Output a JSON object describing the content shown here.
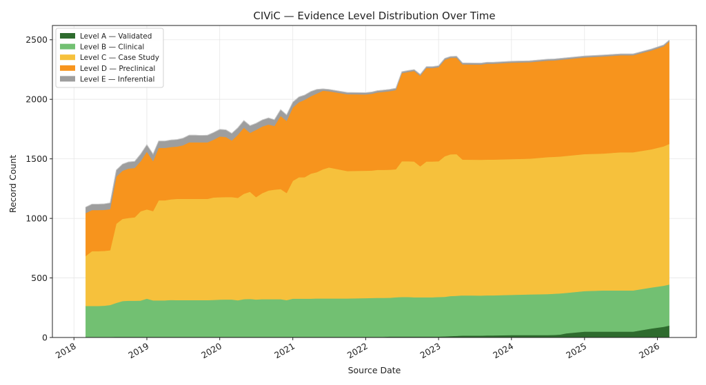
{
  "chart_data": {
    "type": "area",
    "stacked": true,
    "title": "CIViC — Evidence Level Distribution Over Time",
    "xlabel": "Source Date",
    "ylabel": "Record Count",
    "xlim": [
      "2017-09-15",
      "2026-07-15"
    ],
    "ylim": [
      0,
      2620
    ],
    "grid": true,
    "legend_position": "top-left",
    "x_ticks": [
      "2018",
      "2019",
      "2020",
      "2021",
      "2022",
      "2023",
      "2024",
      "2025",
      "2026"
    ],
    "y_ticks": [
      0,
      500,
      1000,
      1500,
      2000,
      2500
    ],
    "x": [
      "2018-03-01",
      "2018-04-01",
      "2018-05-01",
      "2018-06-01",
      "2018-07-01",
      "2018-08-01",
      "2018-09-01",
      "2018-10-01",
      "2018-11-01",
      "2018-12-01",
      "2019-01-01",
      "2019-02-01",
      "2019-03-01",
      "2019-04-01",
      "2019-05-01",
      "2019-06-01",
      "2019-07-01",
      "2019-08-01",
      "2019-09-01",
      "2019-10-01",
      "2019-11-01",
      "2019-12-01",
      "2020-01-01",
      "2020-02-01",
      "2020-03-01",
      "2020-04-01",
      "2020-05-01",
      "2020-06-01",
      "2020-07-01",
      "2020-08-01",
      "2020-09-01",
      "2020-10-01",
      "2020-11-01",
      "2020-12-01",
      "2021-01-01",
      "2021-02-01",
      "2021-03-01",
      "2021-04-01",
      "2021-05-01",
      "2021-06-01",
      "2021-07-01",
      "2021-10-01",
      "2022-01-01",
      "2022-02-01",
      "2022-03-01",
      "2022-04-01",
      "2022-05-01",
      "2022-06-01",
      "2022-07-01",
      "2022-08-01",
      "2022-09-01",
      "2022-10-01",
      "2022-11-01",
      "2022-12-01",
      "2023-01-01",
      "2023-02-01",
      "2023-03-01",
      "2023-04-01",
      "2023-05-01",
      "2023-08-01",
      "2023-09-01",
      "2023-10-01",
      "2024-01-01",
      "2024-04-01",
      "2024-07-01",
      "2024-08-01",
      "2024-09-01",
      "2024-10-01",
      "2025-01-01",
      "2025-04-01",
      "2025-07-01",
      "2025-08-01",
      "2025-09-01",
      "2025-12-01",
      "2026-02-01",
      "2026-03-01"
    ],
    "series": [
      {
        "name": "Level A — Validated",
        "color": "#2e6b2e",
        "values": [
          5,
          5,
          5,
          5,
          5,
          6,
          6,
          6,
          6,
          6,
          6,
          6,
          6,
          6,
          6,
          6,
          6,
          6,
          6,
          6,
          6,
          6,
          6,
          6,
          6,
          6,
          6,
          6,
          6,
          6,
          6,
          6,
          6,
          6,
          6,
          6,
          6,
          6,
          6,
          6,
          6,
          6,
          6,
          6,
          6,
          6,
          8,
          8,
          8,
          8,
          8,
          8,
          8,
          8,
          8,
          10,
          12,
          14,
          16,
          16,
          18,
          18,
          20,
          20,
          20,
          22,
          25,
          35,
          50,
          50,
          50,
          50,
          50,
          75,
          90,
          100
        ]
      },
      {
        "name": "Level B — Clinical",
        "color": "#72c072",
        "values": [
          260,
          260,
          260,
          262,
          268,
          285,
          300,
          303,
          303,
          304,
          320,
          306,
          306,
          306,
          309,
          308,
          308,
          308,
          308,
          308,
          308,
          310,
          312,
          313,
          313,
          307,
          316,
          318,
          313,
          316,
          316,
          316,
          316,
          308,
          320,
          320,
          320,
          320,
          322,
          322,
          322,
          322,
          325,
          326,
          327,
          327,
          326,
          330,
          332,
          332,
          330,
          330,
          330,
          330,
          332,
          332,
          336,
          336,
          338,
          336,
          336,
          336,
          338,
          342,
          345,
          345,
          345,
          340,
          340,
          345,
          345,
          345,
          345,
          345,
          345,
          345
        ]
      },
      {
        "name": "Level C — Case Study",
        "color": "#f6c13c",
        "values": [
          420,
          460,
          460,
          460,
          460,
          665,
          690,
          695,
          700,
          750,
          750,
          750,
          840,
          840,
          845,
          850,
          850,
          850,
          850,
          850,
          850,
          860,
          860,
          860,
          860,
          860,
          885,
          900,
          860,
          890,
          912,
          920,
          925,
          900,
          990,
          1020,
          1020,
          1050,
          1060,
          1085,
          1100,
          1070,
          1070,
          1070,
          1075,
          1075,
          1075,
          1075,
          1140,
          1140,
          1140,
          1100,
          1140,
          1140,
          1140,
          1180,
          1190,
          1190,
          1140,
          1140,
          1140,
          1140,
          1140,
          1140,
          1150,
          1150,
          1150,
          1150,
          1150,
          1150,
          1160,
          1160,
          1160,
          1160,
          1170,
          1180
        ]
      },
      {
        "name": "Level D — Preclinical",
        "color": "#f7941d",
        "values": [
          360,
          345,
          345,
          345,
          345,
          395,
          405,
          415,
          415,
          420,
          485,
          420,
          440,
          440,
          440,
          440,
          450,
          475,
          475,
          475,
          475,
          485,
          510,
          505,
          475,
          530,
          555,
          495,
          565,
          560,
          555,
          535,
          615,
          605,
          615,
          630,
          650,
          650,
          660,
          660,
          640,
          645,
          640,
          645,
          650,
          655,
          660,
          665,
          740,
          750,
          760,
          760,
          785,
          785,
          790,
          810,
          810,
          810,
          800,
          800,
          805,
          805,
          810,
          810,
          810,
          810,
          812,
          812,
          812,
          815,
          815,
          815,
          815,
          830,
          840,
          860
        ]
      },
      {
        "name": "Level E — Inferential",
        "color": "#9e9e9e",
        "values": [
          50,
          50,
          50,
          50,
          52,
          55,
          55,
          55,
          55,
          60,
          58,
          58,
          58,
          58,
          58,
          58,
          60,
          60,
          60,
          58,
          60,
          60,
          60,
          60,
          60,
          58,
          60,
          60,
          55,
          55,
          55,
          52,
          52,
          50,
          45,
          45,
          40,
          40,
          35,
          15,
          15,
          15,
          15,
          15,
          15,
          15,
          15,
          15,
          12,
          12,
          12,
          12,
          12,
          12,
          12,
          12,
          12,
          12,
          12,
          12,
          12,
          12,
          12,
          12,
          12,
          12,
          12,
          12,
          12,
          12,
          12,
          12,
          12,
          12,
          12,
          12
        ]
      }
    ]
  }
}
